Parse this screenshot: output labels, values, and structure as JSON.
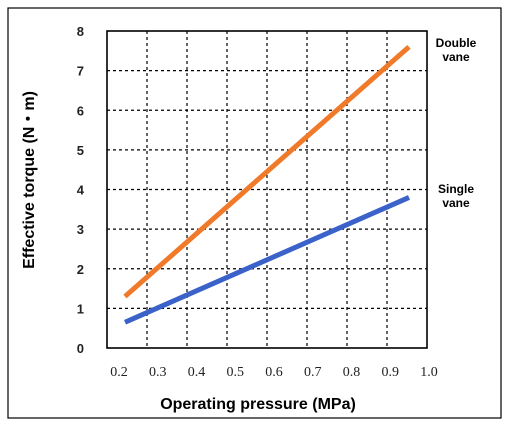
{
  "chart_data": {
    "type": "line",
    "xlabel": "Operating pressure (MPa)",
    "ylabel": "Effective torque (N・m)",
    "x": [
      0.2,
      1.0
    ],
    "x_ticks": [
      "0.2",
      "0.3",
      "0.4",
      "0.5",
      "0.6",
      "0.7",
      "0.8",
      "0.9",
      "1.0"
    ],
    "y_ticks": [
      "0",
      "1",
      "2",
      "3",
      "4",
      "5",
      "6",
      "7",
      "8"
    ],
    "xlim": [
      0.2,
      1.0
    ],
    "ylim": [
      0,
      8
    ],
    "grid": true,
    "grid_style": "dashed",
    "series": [
      {
        "name_lines": [
          "Double",
          "vane"
        ],
        "values": [
          1.3,
          7.6
        ],
        "color": "#f07a2a"
      },
      {
        "name_lines": [
          "Single",
          "vane"
        ],
        "values": [
          0.65,
          3.8
        ],
        "color": "#3a62c9"
      }
    ]
  }
}
